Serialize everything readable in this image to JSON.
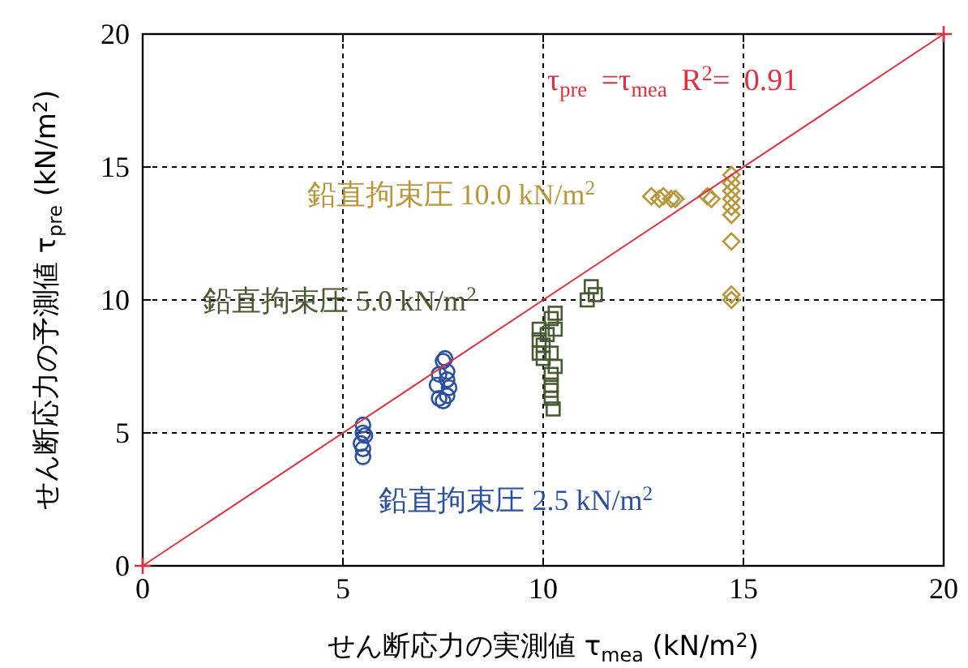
{
  "chart_data": {
    "type": "scatter",
    "xlabel": "せん断応力の実測値 τ$_{mea}$ (kN/m$^{2}$)",
    "ylabel": "せん断応力の予測値 τ$_{pre}$ (kN/m$^{2}$)",
    "xlim": [
      0,
      20
    ],
    "ylim": [
      0,
      20
    ],
    "xticks": [
      0,
      5,
      10,
      15,
      20
    ],
    "yticks": [
      0,
      5,
      10,
      15,
      20
    ],
    "grid": true,
    "annotations": [
      "τ$_{pre}$ =τ$_{mea}$   R$^{2}$= 0.91"
    ],
    "series": [
      {
        "name": "鉛直拘束圧  2.5 kN/m$^{2}$",
        "color": "#2a4fa3",
        "marker": "circle",
        "x": [
          5.5,
          5.5,
          5.5,
          5.5,
          5.45,
          5.55,
          7.4,
          7.5,
          7.6,
          7.6,
          7.4,
          7.6,
          7.5,
          7.55,
          7.35,
          7.65
        ],
        "values": [
          4.1,
          4.4,
          5.0,
          5.3,
          4.6,
          4.9,
          6.3,
          6.2,
          6.4,
          7.0,
          7.2,
          7.3,
          7.7,
          7.8,
          6.8,
          6.7
        ]
      },
      {
        "name": "鉛直拘束圧  5.0 kN/m$^{2}$",
        "color": "#485a32",
        "marker": "square",
        "x": [
          9.9,
          9.9,
          9.9,
          10.0,
          10.0,
          10.1,
          10.2,
          10.3,
          10.2,
          10.3,
          10.3,
          10.2,
          10.2,
          10.2,
          10.25,
          10.2,
          11.1,
          11.2,
          11.3
        ],
        "values": [
          8.0,
          8.5,
          8.9,
          7.8,
          8.3,
          8.7,
          9.3,
          9.5,
          8.0,
          7.5,
          8.9,
          7.2,
          6.8,
          6.3,
          5.9,
          6.6,
          10.0,
          10.5,
          10.2
        ]
      },
      {
        "name": "鉛直拘束圧  10.0 kN/m$^{2}$",
        "color": "#b8963a",
        "marker": "diamond",
        "x": [
          12.7,
          12.9,
          13.0,
          13.2,
          13.3,
          14.1,
          14.2,
          14.7,
          14.7,
          14.7,
          14.7,
          14.7,
          14.7,
          14.7,
          14.7,
          14.7
        ],
        "values": [
          13.9,
          13.8,
          13.9,
          13.8,
          13.8,
          13.9,
          13.8,
          14.7,
          14.4,
          14.1,
          13.8,
          13.5,
          13.2,
          12.2,
          10.2,
          10.0
        ]
      },
      {
        "type": "line",
        "color": "#e03040",
        "marker": "cross",
        "x": [
          0,
          20
        ],
        "values": [
          0,
          20
        ]
      }
    ]
  }
}
